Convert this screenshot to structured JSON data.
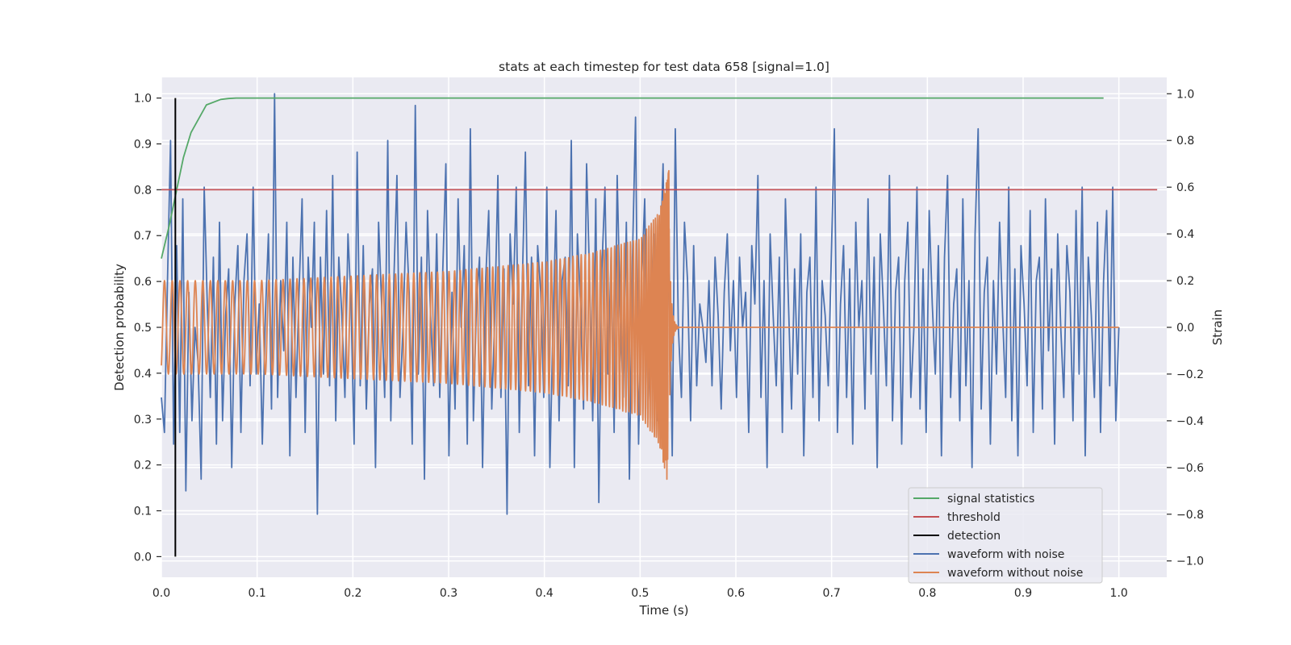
{
  "chart_data": {
    "type": "line",
    "title": "stats at each timestep for test data 658 [signal=1.0]",
    "xlabel": "Time (s)",
    "ylabel": "Detection probability",
    "y2label": "Strain",
    "xlim": [
      0.0,
      1.05
    ],
    "ylim": [
      -0.045,
      1.045
    ],
    "y2lim": [
      -1.07,
      1.07
    ],
    "xticks": [
      "0.0",
      "0.1",
      "0.2",
      "0.3",
      "0.4",
      "0.5",
      "0.6",
      "0.7",
      "0.8",
      "0.9",
      "1.0"
    ],
    "yticks": [
      "0.0",
      "0.1",
      "0.2",
      "0.3",
      "0.4",
      "0.5",
      "0.6",
      "0.7",
      "0.8",
      "0.9",
      "1.0"
    ],
    "y2ticks": [
      "−1.0",
      "−0.8",
      "−0.6",
      "−0.4",
      "−0.2",
      "0.0",
      "0.2",
      "0.4",
      "0.6",
      "0.8",
      "1.0"
    ],
    "grid": true,
    "legend_position": "lower right",
    "series": [
      {
        "name": "signal statistics",
        "color": "#55a868",
        "axis": "left",
        "x": [
          0.0,
          0.008,
          0.016,
          0.023,
          0.031,
          0.047,
          0.062,
          0.07,
          0.078,
          0.1,
          0.2,
          0.4,
          0.6,
          0.8,
          0.984
        ],
        "y": [
          0.65,
          0.72,
          0.8,
          0.87,
          0.925,
          0.985,
          0.997,
          0.999,
          1.0,
          1.0,
          1.0,
          1.0,
          1.0,
          1.0,
          1.0
        ]
      },
      {
        "name": "threshold",
        "color": "#c44e52",
        "axis": "left",
        "x": [
          0.0,
          1.04
        ],
        "y": [
          0.8,
          0.8
        ]
      },
      {
        "name": "detection",
        "color": "#000000",
        "axis": "left",
        "x": [
          0.0146,
          0.0146
        ],
        "y": [
          0.0,
          1.0
        ]
      },
      {
        "name": "waveform with noise",
        "color": "#4c72b0",
        "axis": "right",
        "x_start": 0.0,
        "x_end": 1.0,
        "y": [
          -0.3,
          -0.45,
          0.2,
          0.8,
          -0.5,
          0.35,
          -0.45,
          0.55,
          -0.7,
          0.15,
          -0.4,
          0.0,
          -0.15,
          -0.65,
          0.6,
          0.1,
          -0.3,
          0.3,
          -0.5,
          0.45,
          -0.4,
          0.05,
          0.25,
          -0.6,
          0.1,
          0.35,
          -0.45,
          0.2,
          0.4,
          -0.25,
          0.6,
          -0.2,
          0.1,
          -0.5,
          0.05,
          0.4,
          -0.35,
          1.0,
          -0.3,
          0.2,
          -0.1,
          0.45,
          -0.55,
          0.3,
          -0.3,
          0.15,
          0.55,
          -0.45,
          0.3,
          0.0,
          0.45,
          -0.8,
          0.3,
          -0.2,
          0.5,
          -0.25,
          0.65,
          -0.4,
          0.3,
          0.05,
          -0.3,
          0.4,
          0.1,
          -0.5,
          0.75,
          -0.25,
          0.35,
          -0.35,
          0.1,
          0.25,
          -0.6,
          0.45,
          0.1,
          -0.3,
          0.8,
          -0.4,
          0.2,
          0.65,
          -0.3,
          0.0,
          0.45,
          0.15,
          -0.5,
          0.95,
          -0.2,
          0.3,
          -0.65,
          0.5,
          0.05,
          -0.25,
          0.4,
          -0.3,
          0.25,
          0.7,
          -0.55,
          0.15,
          -0.35,
          0.55,
          0.0,
          0.35,
          -0.5,
          0.85,
          -0.4,
          0.1,
          0.3,
          -0.6,
          0.2,
          0.5,
          -0.35,
          0.05,
          0.65,
          -0.3,
          0.25,
          -0.8,
          0.4,
          0.1,
          0.6,
          -0.45,
          0.2,
          0.75,
          -0.25,
          0.3,
          -0.55,
          0.35,
          0.15,
          -0.3,
          0.6,
          -0.6,
          0.0,
          0.5,
          -0.4,
          0.2,
          0.3,
          -0.25,
          0.8,
          -0.6,
          0.4,
          0.1,
          -0.35,
          0.7,
          0.2,
          -0.4,
          0.55,
          -0.75,
          0.25,
          0.6,
          -0.2,
          0.3,
          -0.45,
          0.65,
          0.05,
          -0.3,
          0.45,
          -0.65,
          0.3,
          0.9,
          -0.5,
          0.2,
          0.55,
          -0.35,
          0.1,
          0.4,
          -0.4,
          0.25,
          0.7,
          -0.2,
          0.3,
          -0.55,
          0.85,
          0.0,
          -0.3,
          0.45,
          0.2,
          -0.4,
          0.35,
          -0.25,
          0.1,
          0.0,
          -0.15,
          0.2,
          -0.25,
          0.3,
          0.05,
          -0.35,
          0.15,
          0.4,
          -0.1,
          0.2,
          -0.3,
          0.3,
          0.0,
          0.15,
          -0.45,
          0.35,
          0.1,
          0.65,
          -0.3,
          0.2,
          -0.6,
          0.4,
          0.05,
          -0.25,
          0.3,
          -0.45,
          0.55,
          0.1,
          -0.35,
          0.25,
          -0.2,
          0.4,
          -0.55,
          0.15,
          0.3,
          -0.3,
          0.6,
          -0.4,
          0.2,
          0.05,
          -0.25,
          0.3,
          0.85,
          -0.45,
          0.1,
          0.35,
          -0.3,
          0.25,
          -0.5,
          0.45,
          0.0,
          0.2,
          -0.35,
          0.55,
          -0.2,
          0.3,
          -0.6,
          0.4,
          0.1,
          -0.25,
          0.65,
          -0.4,
          0.15,
          0.3,
          -0.5,
          0.2,
          0.45,
          -0.3,
          0.0,
          0.6,
          -0.35,
          0.25,
          -0.45,
          0.5,
          0.1,
          -0.2,
          0.35,
          -0.55,
          0.3,
          0.65,
          -0.3,
          0.1,
          0.25,
          -0.4,
          0.55,
          -0.25,
          0.2,
          -0.6,
          0.4,
          0.85,
          -0.35,
          0.15,
          0.3,
          -0.5,
          0.2,
          -0.2,
          0.45,
          0.05,
          -0.3,
          0.6,
          -0.4,
          0.25,
          -0.55,
          0.35,
          0.1,
          -0.25,
          0.5,
          -0.45,
          0.2,
          0.3,
          -0.35,
          0.55,
          -0.1,
          0.25,
          -0.5,
          0.4,
          0.0,
          -0.3,
          0.35,
          0.15,
          -0.4,
          0.5,
          -0.2,
          0.6,
          -0.55,
          0.3,
          0.05,
          -0.3,
          0.45,
          -0.45,
          0.2,
          0.5,
          -0.25,
          0.6,
          -0.4,
          0.0
        ]
      },
      {
        "name": "waveform without noise",
        "color": "#dd8452",
        "axis": "right",
        "chirp_start": 0.0,
        "chirp_end": 0.53,
        "amplitude_envelope": [
          [
            0.0,
            0.2
          ],
          [
            0.1,
            0.2
          ],
          [
            0.3,
            0.24
          ],
          [
            0.4,
            0.28
          ],
          [
            0.45,
            0.32
          ],
          [
            0.5,
            0.38
          ],
          [
            0.52,
            0.5
          ],
          [
            0.53,
            0.7
          ]
        ],
        "flat_after": 0.54,
        "flat_to": 1.0
      }
    ]
  }
}
